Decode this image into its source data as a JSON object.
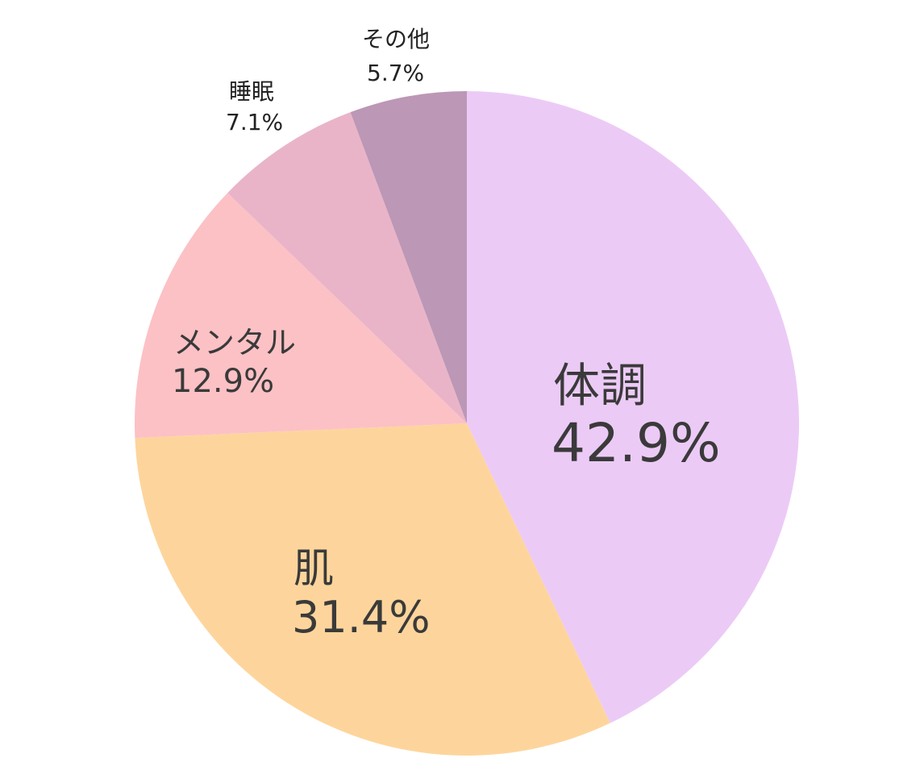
{
  "chart_data": {
    "type": "pie",
    "title": "",
    "start": "top",
    "direction": "clockwise",
    "slices": [
      {
        "label": "体調",
        "value": 42.9,
        "value_label": "42.9%",
        "color": "#ECCAF6"
      },
      {
        "label": "肌",
        "value": 31.4,
        "value_label": "31.4%",
        "color": "#FDD59C"
      },
      {
        "label": "メンタル",
        "value": 12.9,
        "value_label": "12.9%",
        "color": "#FCC1C5"
      },
      {
        "label": "睡眠",
        "value": 7.1,
        "value_label": "7.1%",
        "color": "#EAB4C8"
      },
      {
        "label": "その他",
        "value": 5.7,
        "value_label": "5.7%",
        "color": "#BC97B6"
      }
    ]
  }
}
